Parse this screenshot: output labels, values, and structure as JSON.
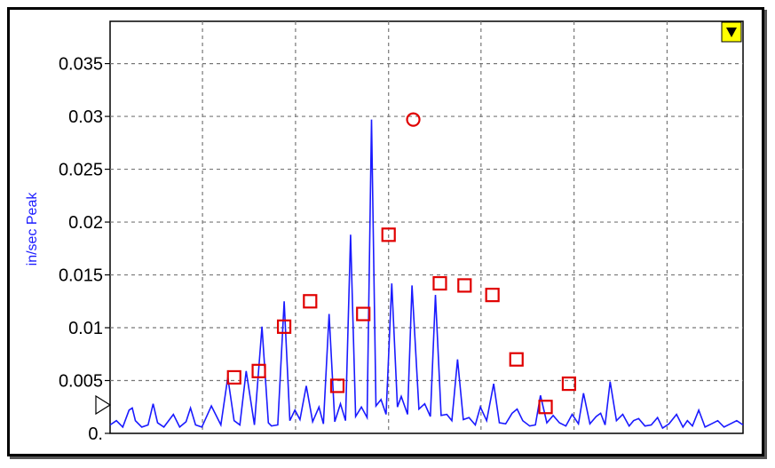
{
  "chart_data": {
    "type": "line",
    "ylabel": "in/sec Peak",
    "xlabel": "",
    "title": "",
    "ylim": [
      0,
      0.039
    ],
    "xlim": [
      0,
      100
    ],
    "y_ticks": [
      {
        "value": 0.035,
        "label": "0.035"
      },
      {
        "value": 0.03,
        "label": "0.03"
      },
      {
        "value": 0.025,
        "label": "0.025"
      },
      {
        "value": 0.02,
        "label": "0.02"
      },
      {
        "value": 0.015,
        "label": "0.015"
      },
      {
        "value": 0.01,
        "label": "0.01"
      },
      {
        "value": 0.005,
        "label": "0.005"
      },
      {
        "value": 0,
        "label": "0."
      }
    ],
    "x_gridlines": [
      14.6,
      29.3,
      44.0,
      58.6,
      73.3,
      88.0
    ],
    "grid": true,
    "line_color": "#1a1aff",
    "marker_color": "#e00000",
    "series": [
      {
        "x": [
          0,
          1,
          2,
          3,
          3.5,
          4,
          5,
          6,
          6.8,
          7.5,
          8.5,
          10,
          11,
          12,
          12.7,
          13.5,
          14.5,
          16,
          17.5,
          18.6,
          19.6,
          20.5,
          21.5,
          22.8,
          24,
          25,
          25.5,
          26.5,
          27.5,
          28.4,
          29.2,
          30,
          31,
          32,
          33,
          33.7,
          34.6,
          35.5,
          36.4,
          37.2,
          38,
          38.8,
          39.7,
          40.6,
          41.3,
          42,
          42.8,
          43.6,
          44.5,
          45.4,
          46,
          47,
          47.7,
          48.8,
          49.7,
          50.6,
          51.4,
          52.3,
          53.2,
          54,
          54.9,
          55.8,
          56.7,
          57.7,
          58.5,
          59.5,
          60.6,
          61.5,
          62.5,
          63.5,
          64.3,
          65.2,
          66.3,
          67.2,
          68,
          69,
          70,
          71,
          72,
          73,
          74,
          74.8,
          75.8,
          76.8,
          77.5,
          78.2,
          79,
          80,
          81,
          82,
          82.7,
          83.5,
          84.5,
          85.5,
          86.5,
          87.3,
          88.3,
          89.5,
          90.5,
          91.2,
          92,
          93,
          94,
          95,
          96,
          97,
          98,
          99,
          100
        ],
        "y": [
          0.0008,
          0.0012,
          0.0006,
          0.0022,
          0.0024,
          0.0012,
          0.0006,
          0.0008,
          0.0028,
          0.001,
          0.0006,
          0.0018,
          0.0006,
          0.0011,
          0.0024,
          0.0008,
          0.0006,
          0.0026,
          0.0008,
          0.0053,
          0.0012,
          0.0008,
          0.0059,
          0.0008,
          0.0101,
          0.001,
          0.0007,
          0.0008,
          0.0125,
          0.0012,
          0.0022,
          0.0013,
          0.0045,
          0.0011,
          0.0025,
          0.0009,
          0.0113,
          0.0011,
          0.0028,
          0.0012,
          0.0188,
          0.0016,
          0.0025,
          0.0015,
          0.0297,
          0.0026,
          0.0032,
          0.0018,
          0.0142,
          0.0025,
          0.0035,
          0.0018,
          0.014,
          0.0023,
          0.0028,
          0.0016,
          0.0131,
          0.0017,
          0.0018,
          0.0012,
          0.007,
          0.0013,
          0.0015,
          0.0008,
          0.0025,
          0.0012,
          0.0047,
          0.001,
          0.0009,
          0.0019,
          0.0023,
          0.0012,
          0.0007,
          0.0008,
          0.0036,
          0.001,
          0.0017,
          0.001,
          0.0007,
          0.0018,
          0.0009,
          0.0038,
          0.0009,
          0.0016,
          0.0019,
          0.0008,
          0.0049,
          0.0012,
          0.0018,
          0.0007,
          0.0012,
          0.0014,
          0.0007,
          0.0008,
          0.0015,
          0.0005,
          0.0009,
          0.0018,
          0.0006,
          0.0012,
          0.0007,
          0.0022,
          0.0006,
          0.0009,
          0.0012,
          0.0006,
          0.0009,
          0.0012,
          0.0008
        ]
      }
    ],
    "peaks": [
      {
        "x": 19.6,
        "y": 0.0053,
        "marker": "square"
      },
      {
        "x": 23.5,
        "y": 0.0059,
        "marker": "square"
      },
      {
        "x": 27.5,
        "y": 0.0101,
        "marker": "square"
      },
      {
        "x": 31.6,
        "y": 0.0125,
        "marker": "square"
      },
      {
        "x": 35.9,
        "y": 0.0045,
        "marker": "square"
      },
      {
        "x": 40.0,
        "y": 0.0113,
        "marker": "square"
      },
      {
        "x": 44.0,
        "y": 0.0188,
        "marker": "square"
      },
      {
        "x": 47.9,
        "y": 0.0297,
        "marker": "circle"
      },
      {
        "x": 52.1,
        "y": 0.0142,
        "marker": "square"
      },
      {
        "x": 56.0,
        "y": 0.014,
        "marker": "square"
      },
      {
        "x": 60.4,
        "y": 0.0131,
        "marker": "square"
      },
      {
        "x": 64.2,
        "y": 0.007,
        "marker": "square"
      },
      {
        "x": 68.8,
        "y": 0.0025,
        "marker": "square"
      },
      {
        "x": 72.5,
        "y": 0.0047,
        "marker": "square"
      }
    ]
  },
  "controls": {
    "menu_button_color": "#ffff00"
  }
}
